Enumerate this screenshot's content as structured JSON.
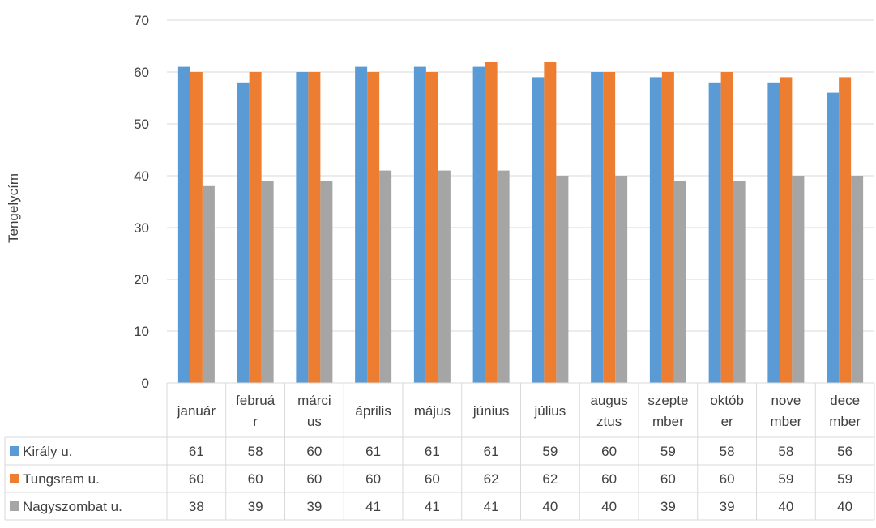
{
  "chart_data": {
    "type": "bar",
    "title": "",
    "ylabel": "Tengelycím",
    "xlabel": "",
    "ylim": [
      0,
      70
    ],
    "yticks": [
      0,
      10,
      20,
      30,
      40,
      50,
      60,
      70
    ],
    "grid": true,
    "legend": "data-table",
    "categories": [
      [
        "január"
      ],
      [
        "februá",
        "r"
      ],
      [
        "márci",
        "us"
      ],
      [
        "április"
      ],
      [
        "május"
      ],
      [
        "június"
      ],
      [
        "július"
      ],
      [
        "augus",
        "ztus"
      ],
      [
        "szepte",
        "mber"
      ],
      [
        "októb",
        "er"
      ],
      [
        "nove",
        "mber"
      ],
      [
        "dece",
        "mber"
      ]
    ],
    "series": [
      {
        "name": "Király u.",
        "color": "#5B9BD5",
        "values": [
          61,
          58,
          60,
          61,
          61,
          61,
          59,
          60,
          59,
          58,
          58,
          56
        ]
      },
      {
        "name": "Tungsram u.",
        "color": "#ED7D31",
        "values": [
          60,
          60,
          60,
          60,
          60,
          62,
          62,
          60,
          60,
          60,
          59,
          59
        ]
      },
      {
        "name": "Nagyszombat u.",
        "color": "#A5A5A5",
        "values": [
          38,
          39,
          39,
          41,
          41,
          41,
          40,
          40,
          39,
          39,
          40,
          40
        ]
      }
    ]
  }
}
